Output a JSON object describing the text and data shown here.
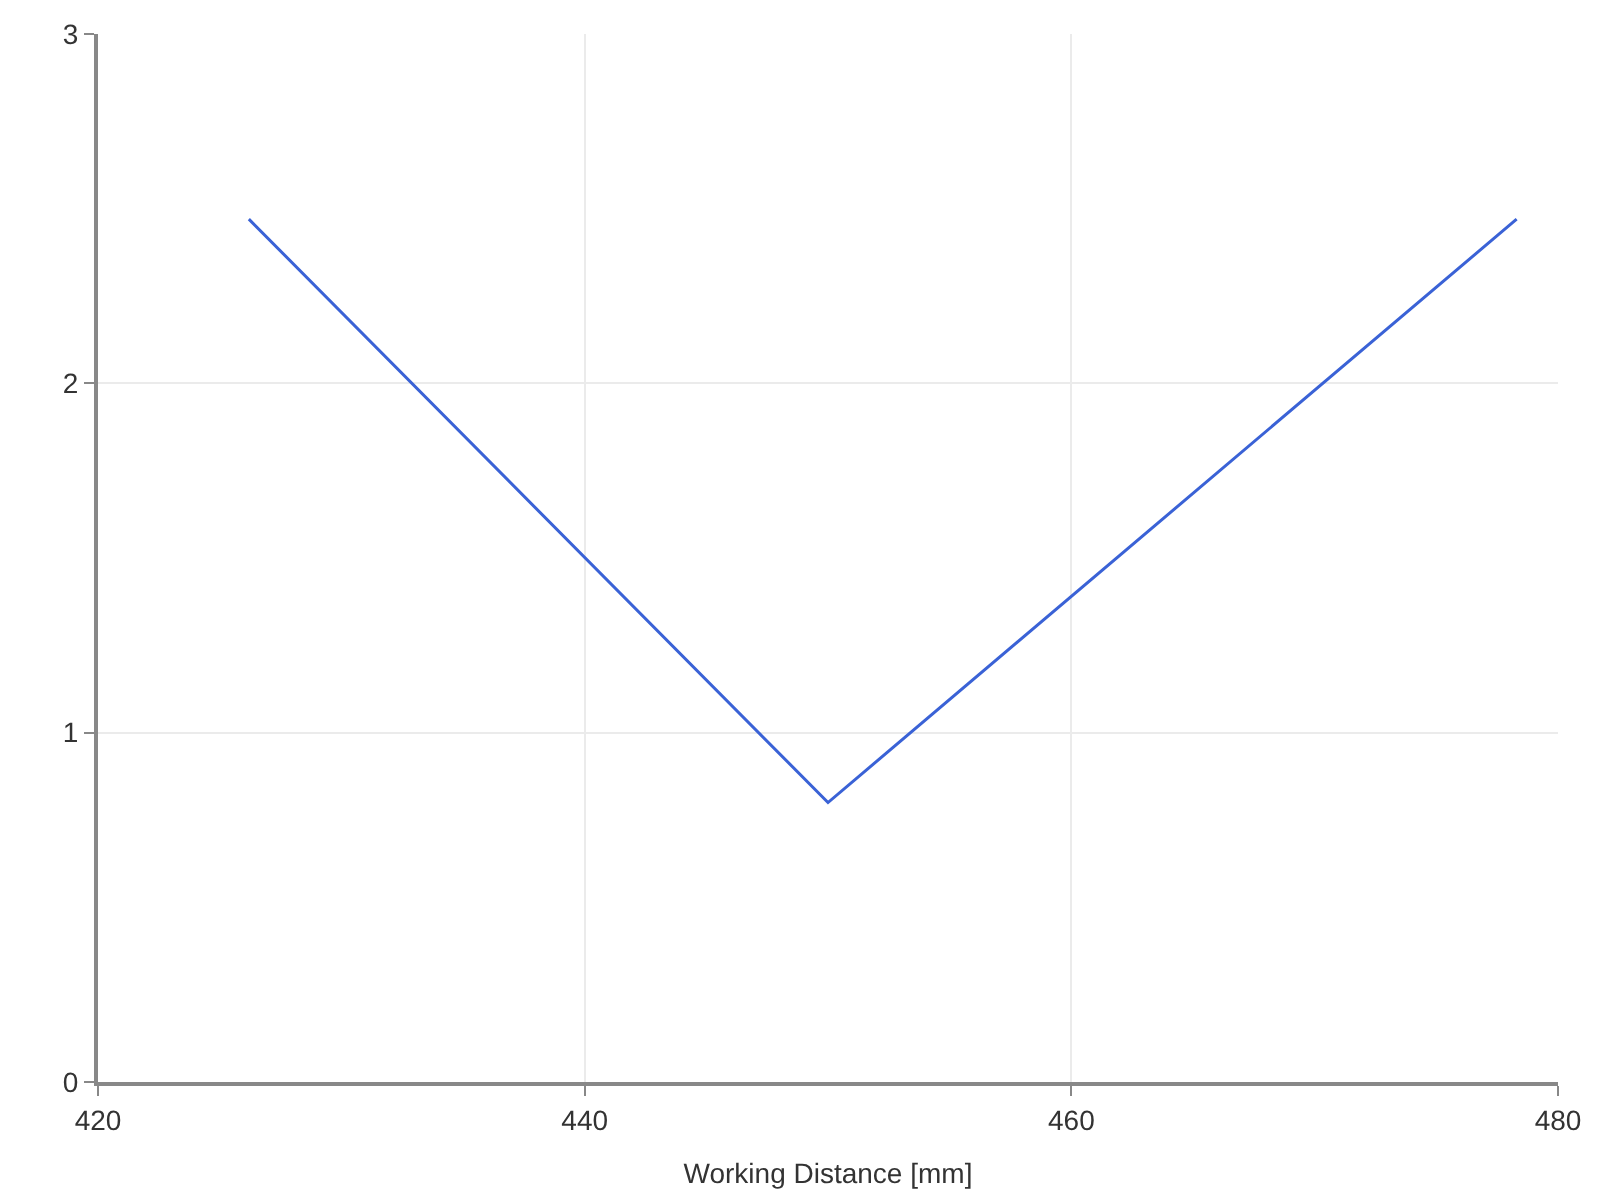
{
  "chart_data": {
    "type": "line",
    "xlabel": "Working Distance [mm]",
    "x": [
      426.2,
      450,
      478.3
    ],
    "series": [
      {
        "color": "#3a62d6",
        "values": [
          2.47,
          0.8,
          2.47
        ]
      }
    ],
    "xlim": [
      420,
      480
    ],
    "xticks": [
      420,
      440,
      460,
      480
    ],
    "ylim": [
      0,
      3
    ],
    "yticks": [
      0,
      1,
      2,
      3
    ],
    "grid": true,
    "legend": false,
    "marker": "none",
    "line_style": "solid"
  }
}
